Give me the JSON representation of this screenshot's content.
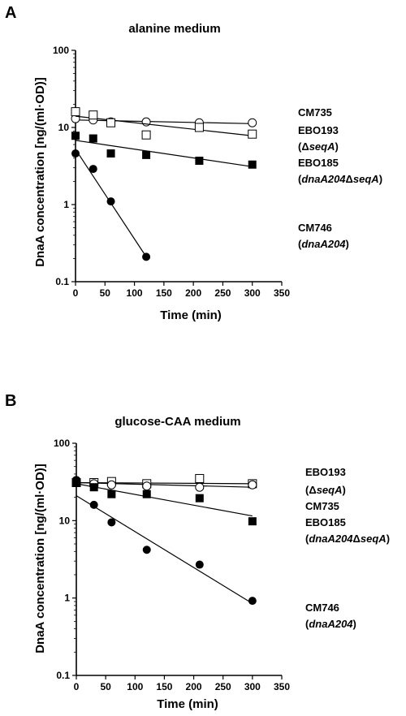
{
  "figure": {
    "panels": [
      {
        "letter": "A",
        "title": "alanine medium"
      },
      {
        "letter": "B",
        "title": "glucose-CAA medium"
      }
    ]
  },
  "chart_data": [
    {
      "type": "scatter",
      "title": "alanine medium",
      "panel_label": "A",
      "xlabel": "Time  (min)",
      "ylabel": "DnaA concentration [ng/(ml·OD)]",
      "xlim": [
        0,
        350
      ],
      "ylim": [
        0.1,
        100
      ],
      "y_scale": "log",
      "x_ticks": [
        0,
        50,
        100,
        150,
        200,
        250,
        300,
        350
      ],
      "y_ticks": [
        0.1,
        1,
        10,
        100
      ],
      "y_tick_labels": [
        "0.1",
        "1",
        "10",
        "100"
      ],
      "grid": false,
      "legend": "right, labels next to line ends",
      "series": [
        {
          "name": "CM735",
          "marker": "open-circle",
          "x": [
            0,
            30,
            60,
            120,
            210,
            300
          ],
          "y": [
            13,
            12.5,
            11.8,
            11.8,
            11.5,
            11.5
          ],
          "fit": [
            [
              0,
              12.5
            ],
            [
              300,
              11.2
            ]
          ],
          "labels": [
            "CM735"
          ]
        },
        {
          "name": "EBO193 (ΔseqA)",
          "marker": "open-square",
          "x": [
            0,
            30,
            60,
            120,
            210,
            300
          ],
          "y": [
            16,
            14.5,
            11.5,
            8,
            10,
            8.2
          ],
          "fit": [
            [
              0,
              14
            ],
            [
              300,
              7.8
            ]
          ],
          "labels": [
            "EBO193",
            "(ΔseqA)"
          ]
        },
        {
          "name": "EBO185 (dnaA204ΔseqA)",
          "marker": "filled-square",
          "x": [
            0,
            30,
            60,
            120,
            210,
            300
          ],
          "y": [
            7.8,
            7.2,
            4.6,
            4.4,
            3.7,
            3.3
          ],
          "fit": [
            [
              0,
              6.8
            ],
            [
              300,
              3.1
            ]
          ],
          "labels": [
            "EBO185",
            "(dnaA204ΔseqA)"
          ]
        },
        {
          "name": "CM746 (dnaA204)",
          "marker": "filled-circle",
          "x": [
            0,
            30,
            60,
            120
          ],
          "y": [
            4.6,
            2.9,
            1.1,
            0.21
          ],
          "fit": [
            [
              0,
              5.2
            ],
            [
              120,
              0.21
            ]
          ],
          "labels": [
            "CM746",
            "(dnaA204)"
          ]
        }
      ]
    },
    {
      "type": "scatter",
      "title": "glucose-CAA medium",
      "panel_label": "B",
      "xlabel": "Time  (min)",
      "ylabel": "DnaA concentration [ng/(ml·OD)]",
      "xlim": [
        0,
        350
      ],
      "ylim": [
        0.1,
        100
      ],
      "y_scale": "log",
      "x_ticks": [
        0,
        50,
        100,
        150,
        200,
        250,
        300,
        350
      ],
      "y_ticks": [
        0.1,
        1,
        10,
        100
      ],
      "y_tick_labels": [
        "0.1",
        "1",
        "10",
        "100"
      ],
      "grid": false,
      "legend": "right, labels next to line ends",
      "series": [
        {
          "name": "EBO193 (ΔseqA)",
          "marker": "open-square",
          "x": [
            0,
            30,
            60,
            120,
            210,
            300
          ],
          "y": [
            31,
            31,
            32,
            30,
            35,
            30
          ],
          "fit": [
            [
              0,
              31
            ],
            [
              300,
              30
            ]
          ],
          "labels": [
            "EBO193",
            "(ΔseqA)"
          ]
        },
        {
          "name": "CM735",
          "marker": "open-circle",
          "x": [
            0,
            30,
            60,
            120,
            210,
            300
          ],
          "y": [
            33,
            30,
            29,
            28,
            27,
            29
          ],
          "fit": [
            [
              0,
              31
            ],
            [
              300,
              27
            ]
          ],
          "labels": [
            "CM735"
          ]
        },
        {
          "name": "EBO185 (dnaA204ΔseqA)",
          "marker": "filled-square",
          "x": [
            0,
            30,
            60,
            120,
            210,
            300
          ],
          "y": [
            31,
            27,
            22,
            22,
            19.5,
            9.8
          ],
          "fit": [
            [
              0,
              30
            ],
            [
              300,
              11.5
            ]
          ],
          "labels": [
            "EBO185",
            "(dnaA204ΔseqA)"
          ]
        },
        {
          "name": "CM746 (dnaA204)",
          "marker": "filled-circle",
          "x": [
            0,
            30,
            60,
            120,
            210,
            300
          ],
          "y": [
            33,
            16,
            9.5,
            4.2,
            2.7,
            0.92
          ],
          "fit": [
            [
              0,
              21
            ],
            [
              300,
              0.85
            ]
          ],
          "labels": [
            "CM746",
            "(dnaA204)"
          ]
        }
      ]
    }
  ]
}
